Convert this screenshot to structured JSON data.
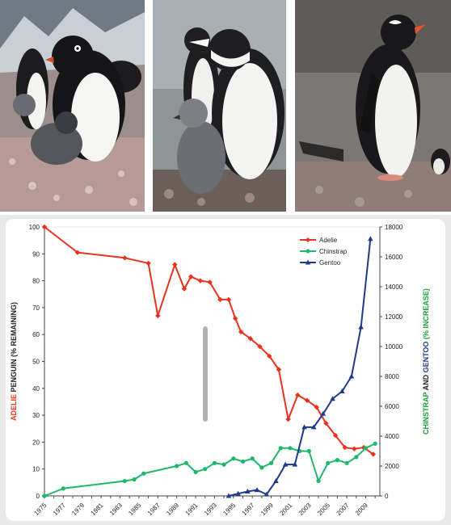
{
  "photos": [
    {
      "subject": "adelie-penguin-with-chick"
    },
    {
      "subject": "chinstrap-penguin-with-chick"
    },
    {
      "subject": "gentoo-penguin"
    }
  ],
  "chart_data": {
    "type": "line",
    "x_ticks": [
      "1975",
      "1977",
      "1979",
      "1981",
      "1983",
      "1985",
      "1987",
      "1989",
      "1991",
      "1993",
      "1995",
      "1997",
      "1999",
      "2001",
      "2003",
      "2005",
      "2007",
      "2009"
    ],
    "xlim": [
      1975,
      2010.5
    ],
    "left_axis": {
      "title_parts": [
        {
          "text": "ADELIE",
          "color": "#e8321e"
        },
        {
          "text": " PENGUIN (% REMAINING)",
          "color": "#222222"
        }
      ],
      "ylim": [
        0,
        100
      ],
      "ticks": [
        "0",
        "10",
        "20",
        "30",
        "40",
        "50",
        "60",
        "70",
        "80",
        "90",
        "100"
      ]
    },
    "right_axis": {
      "title_parts": [
        {
          "text": "CHINSTRAP",
          "color": "#1a9e3a"
        },
        {
          "text": " AND ",
          "color": "#222222"
        },
        {
          "text": "GENTOO",
          "color": "#1f3a8a"
        },
        {
          "text": " (% INCREASE)",
          "color": "#1a9e3a"
        }
      ],
      "ylim": [
        0,
        18000
      ],
      "ticks": [
        "0",
        "2000",
        "4000",
        "6000",
        "8000",
        "10000",
        "12000",
        "14000",
        "16000",
        "18000"
      ]
    },
    "grid": false,
    "legend_position": "top-right",
    "series": [
      {
        "name": "Adelie",
        "axis": "left",
        "color": "#e8321e",
        "marker": "diamond",
        "x": [
          1975,
          1978.5,
          1983.5,
          1986,
          1987,
          1988.8,
          1989.8,
          1990.5,
          1991.5,
          1992.5,
          1993.6,
          1994.5,
          1995.2,
          1995.8,
          1996.8,
          1997.8,
          1998.8,
          1999.8,
          2000.8,
          2001.8,
          2002.8,
          2003.8,
          2004.8,
          2005.8,
          2006.8,
          2007.8,
          2008.8,
          2009.8
        ],
        "y": [
          100,
          90.5,
          88.5,
          86.5,
          67,
          86,
          77,
          81.5,
          80,
          79.5,
          73,
          73,
          66,
          61,
          58.5,
          55.5,
          52,
          47,
          28.5,
          37.5,
          35.5,
          33,
          27,
          22.5,
          18,
          17.5,
          18,
          15.5
        ]
      },
      {
        "name": "Chinstrap",
        "axis": "right",
        "color": "#1fb86a",
        "marker": "circle",
        "x": [
          1975,
          1977,
          1983.5,
          1984.5,
          1985.5,
          1989,
          1990,
          1991,
          1992,
          1993,
          1994,
          1995,
          1996,
          1997,
          1998,
          1999,
          2000,
          2001,
          2002,
          2003,
          2004,
          2005,
          2006,
          2007,
          2008,
          2009,
          2010
        ],
        "y": [
          0,
          500,
          1000,
          1100,
          1500,
          2000,
          2200,
          1600,
          1800,
          2200,
          2100,
          2500,
          2300,
          2500,
          1900,
          2200,
          3200,
          3200,
          3000,
          3000,
          1000,
          2200,
          2400,
          2200,
          2600,
          3200,
          3500
        ]
      },
      {
        "name": "Gentoo",
        "axis": "right",
        "color": "#1f3a8a",
        "marker": "triangle",
        "x": [
          1994.5,
          1995.5,
          1996.5,
          1997.5,
          1998.5,
          1999.5,
          2000.5,
          2001.5,
          2002.5,
          2003.5,
          2004.5,
          2005.5,
          2006.5,
          2007.5,
          2008.5,
          2009.5
        ],
        "y": [
          0,
          150,
          300,
          400,
          100,
          1000,
          2100,
          2100,
          4600,
          4600,
          5500,
          6500,
          7000,
          8000,
          11300,
          17200
        ]
      }
    ]
  }
}
